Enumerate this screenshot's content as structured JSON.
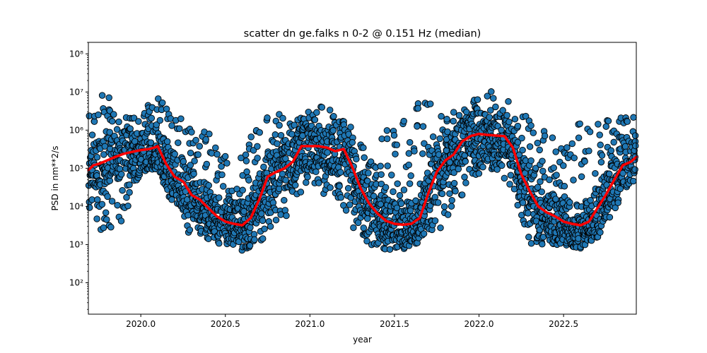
{
  "chart_data": {
    "type": "scatter",
    "title": "scatter dn ge.falks n 0-2 @ 0.151 Hz (median)",
    "xlabel": "year",
    "ylabel": "PSD in nm**2/s",
    "x_scale": "linear",
    "y_scale": "log",
    "xlim": [
      2019.69,
      2022.93
    ],
    "ylim": [
      15,
      200000000
    ],
    "x_ticks": [
      2020.0,
      2020.5,
      2021.0,
      2021.5,
      2022.0,
      2022.5
    ],
    "x_tick_labels": [
      "2020.0",
      "2020.5",
      "2021.0",
      "2021.5",
      "2022.0",
      "2022.5"
    ],
    "y_ticks": [
      100,
      1000,
      10000,
      100000,
      1000000,
      10000000,
      100000000
    ],
    "y_tick_labels": [
      "10²",
      "10³",
      "10⁴",
      "10⁵",
      "10⁶",
      "10⁷",
      "10⁸"
    ],
    "grid": false,
    "legend": "none",
    "scatter_color": "#1f77b4",
    "scatter_edge_color": "#000000",
    "median_color": "#ff0000",
    "median_line": {
      "x": [
        2019.69,
        2019.72,
        2019.75,
        2019.8,
        2019.85,
        2019.9,
        2019.95,
        2020.0,
        2020.05,
        2020.08,
        2020.1,
        2020.13,
        2020.15,
        2020.2,
        2020.25,
        2020.3,
        2020.35,
        2020.4,
        2020.45,
        2020.5,
        2020.55,
        2020.6,
        2020.65,
        2020.7,
        2020.75,
        2020.8,
        2020.85,
        2020.9,
        2020.95,
        2021.0,
        2021.05,
        2021.1,
        2021.15,
        2021.2,
        2021.25,
        2021.3,
        2021.35,
        2021.4,
        2021.45,
        2021.5,
        2021.55,
        2021.6,
        2021.65,
        2021.7,
        2021.75,
        2021.8,
        2021.85,
        2021.9,
        2021.95,
        2022.0,
        2022.05,
        2022.1,
        2022.15,
        2022.2,
        2022.25,
        2022.3,
        2022.35,
        2022.4,
        2022.45,
        2022.5,
        2022.55,
        2022.6,
        2022.65,
        2022.7,
        2022.75,
        2022.8,
        2022.85,
        2022.9,
        2022.93
      ],
      "y": [
        90000,
        120000,
        130000,
        160000,
        200000,
        240000,
        270000,
        300000,
        320000,
        350000,
        380000,
        200000,
        130000,
        60000,
        45000,
        20000,
        15000,
        9000,
        5500,
        4000,
        3500,
        3200,
        5000,
        15000,
        60000,
        80000,
        100000,
        150000,
        380000,
        380000,
        380000,
        350000,
        280000,
        320000,
        110000,
        30000,
        12000,
        6500,
        4200,
        3500,
        3300,
        3500,
        5000,
        22000,
        80000,
        160000,
        230000,
        500000,
        700000,
        800000,
        750000,
        720000,
        700000,
        350000,
        70000,
        25000,
        10000,
        7000,
        5500,
        4000,
        3500,
        3200,
        4000,
        9000,
        20000,
        50000,
        120000,
        150000,
        200000
      ]
    },
    "scatter_envelope": {
      "x": [
        2019.69,
        2019.8,
        2019.9,
        2020.0,
        2020.1,
        2020.2,
        2020.3,
        2020.4,
        2020.5,
        2020.6,
        2020.7,
        2020.8,
        2020.9,
        2021.0,
        2021.1,
        2021.2,
        2021.3,
        2021.4,
        2021.5,
        2021.6,
        2021.7,
        2021.8,
        2021.9,
        2022.0,
        2022.1,
        2022.2,
        2022.3,
        2022.4,
        2022.5,
        2022.6,
        2022.7,
        2022.8,
        2022.93
      ],
      "low": [
        5000,
        1500,
        5000,
        80000,
        100000,
        8000,
        1500,
        1200,
        1000,
        700,
        1000,
        4000,
        7000,
        30000,
        20000,
        10000,
        1000,
        800,
        700,
        800,
        2000,
        3000,
        20000,
        50000,
        100000,
        30000,
        1000,
        1000,
        900,
        800,
        1500,
        8000,
        60000
      ],
      "high": [
        9000000,
        9000000,
        2000000,
        3500000,
        8000000,
        3000000,
        1000000,
        1500000,
        300000,
        200000,
        3000000,
        3000000,
        1500000,
        4000000,
        5000000,
        2000000,
        800000,
        600000,
        2000000,
        5500000,
        6000000,
        3000000,
        3500000,
        12000000,
        10000000,
        5000000,
        2000000,
        1000000,
        300000,
        1800000,
        2000000,
        2000000,
        3000000
      ]
    }
  }
}
